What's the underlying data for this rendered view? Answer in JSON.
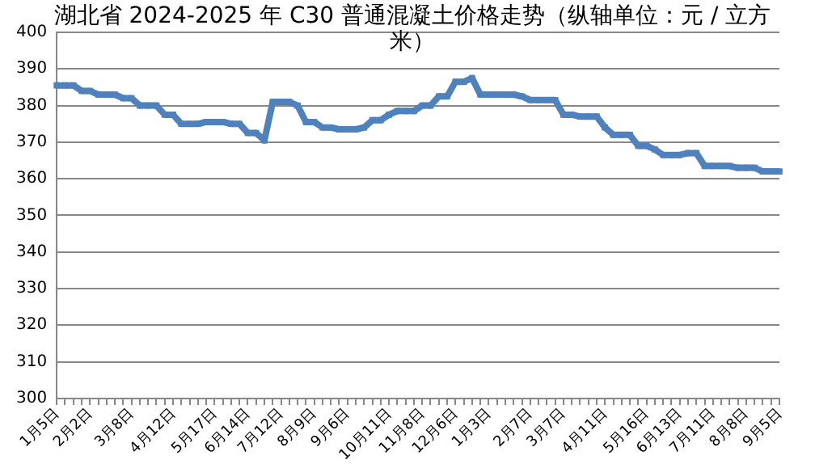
{
  "chart_data": {
    "type": "line",
    "title": "湖北省 2024-2025 年 C30 普通混凝土价格走势（纵轴单位：元 / 立方米）",
    "categories": [
      "1月5日",
      null,
      null,
      null,
      "2月2日",
      null,
      null,
      null,
      null,
      "3月8日",
      null,
      null,
      null,
      null,
      "4月12日",
      null,
      null,
      null,
      null,
      "5月17日",
      null,
      null,
      null,
      "6月14日",
      null,
      null,
      null,
      "7月12日",
      null,
      null,
      null,
      "8月9日",
      null,
      null,
      null,
      "9月6日",
      null,
      null,
      null,
      null,
      "10月11日",
      null,
      null,
      null,
      "11月8日",
      null,
      null,
      null,
      "12月6日",
      null,
      null,
      null,
      "1月3日",
      null,
      null,
      null,
      null,
      "2月7日",
      null,
      null,
      null,
      "3月7日",
      null,
      null,
      null,
      null,
      "4月11日",
      null,
      null,
      null,
      null,
      "5月16日",
      null,
      null,
      null,
      "6月13日",
      null,
      null,
      null,
      "7月11日",
      null,
      null,
      null,
      "8月8日",
      null,
      null,
      null,
      "9月5日"
    ],
    "series": [
      {
        "color": "#4f81bd",
        "values": [
          385.5,
          385.5,
          385.5,
          384,
          384,
          383,
          383,
          383,
          382,
          382,
          380,
          380,
          380,
          377.5,
          377.5,
          375,
          375,
          375,
          375.5,
          375.5,
          375.5,
          375,
          375,
          372.5,
          372.5,
          370.5,
          381,
          381,
          381,
          380,
          375.5,
          375.5,
          374,
          374,
          373.5,
          373.5,
          373.5,
          374,
          376,
          376,
          377.5,
          378.5,
          378.5,
          378.5,
          380,
          380,
          382.5,
          382.5,
          386.5,
          386.5,
          387.5,
          383,
          383,
          383,
          383,
          383,
          382.5,
          381.5,
          381.5,
          381.5,
          381.5,
          377.5,
          377.5,
          377,
          377,
          377,
          374,
          372,
          372,
          372,
          369,
          369,
          368,
          366.5,
          366.5,
          366.5,
          367,
          367,
          363.5,
          363.5,
          363.5,
          363.5,
          363,
          363,
          363,
          362,
          362,
          362
        ]
      }
    ],
    "ylim": [
      300,
      400
    ],
    "yticks": [
      300,
      310,
      320,
      330,
      340,
      350,
      360,
      370,
      380,
      390,
      400
    ],
    "grid": "y",
    "legend": false,
    "marker": "square",
    "line_style": "solid"
  }
}
